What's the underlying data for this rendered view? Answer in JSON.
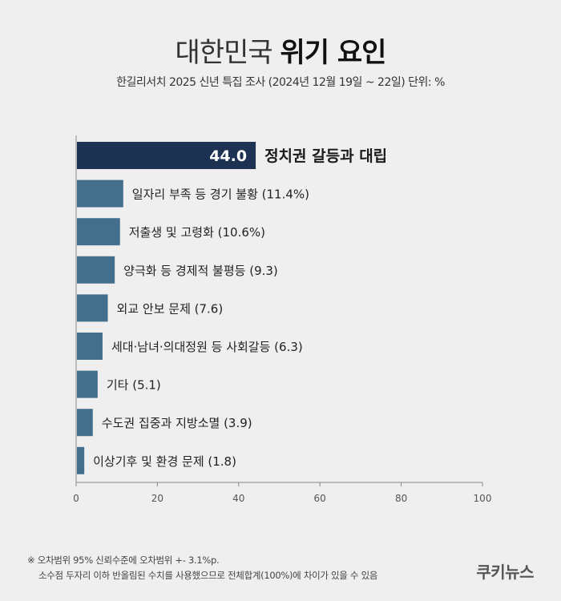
{
  "header": {
    "title_normal": "대한민국",
    "title_bold": "위기 요인",
    "subtitle": "한길리서치 2025 신년 특집 조사 (2024년 12월 19일 ~ 22일) 단위: %"
  },
  "chart_data": {
    "type": "bar",
    "orientation": "horizontal",
    "categories": [
      "정치권 갈등과 대립",
      "일자리 부족 등 경기 불황",
      "저출생 및 고령화",
      "양극화 등 경제적 불평등",
      "외교 안보 문제",
      "세대·남녀·의대정원 등 사회갈등",
      "기타",
      "수도권 집중과 지방소멸",
      "이상기후 및 환경 문제"
    ],
    "values": [
      44.0,
      11.4,
      10.6,
      9.3,
      7.6,
      6.3,
      5.1,
      3.9,
      1.8
    ],
    "labels": [
      "정치권 갈등과 대립",
      "일자리 부족 등 경기 불황 (11.4%)",
      "저출생 및 고령화 (10.6%)",
      "양극화 등 경제적 불평등 (9.3)",
      "외교 안보 문제 (7.6)",
      "세대·남녀·의대정원 등 사회갈등 (6.3)",
      "기타 (5.1)",
      "수도권 집중과 지방소멸 (3.9)",
      "이상기후 및 환경 문제 (1.8)"
    ],
    "highlight_value_label": "44.0",
    "xlim": [
      0,
      100
    ],
    "xticks": [
      "0",
      "20",
      "40",
      "60",
      "80",
      "100"
    ],
    "grid": false,
    "colors": {
      "highlight": "#1d3153",
      "bar": "#446f8c"
    }
  },
  "footnote": {
    "line1": "※ 오차범위 95% 신뢰수준에 오차범위 +- 3.1%p.",
    "line2": "소수점 두자리 이하 반올림된 수치를 사용했으므로 전체합계(100%)에 차이가 있을 수 있음"
  },
  "brand": "쿠키뉴스"
}
